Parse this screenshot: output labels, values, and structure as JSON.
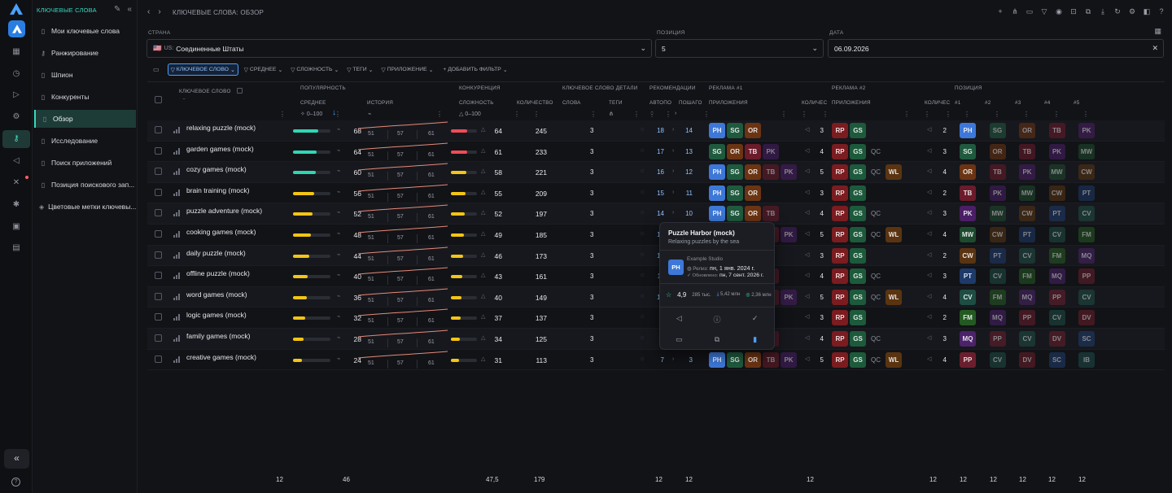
{
  "sidebar": {
    "title": "КЛЮЧЕВЫЕ СЛОВА",
    "items": [
      {
        "label": "Мои ключевые слова",
        "icon": "document-icon"
      },
      {
        "label": "Ранжирование",
        "icon": "key-icon"
      },
      {
        "label": "Шпион",
        "icon": "document-icon"
      },
      {
        "label": "Конкуренты",
        "icon": "document-icon"
      },
      {
        "label": "Обзор",
        "icon": "document-icon",
        "active": true
      },
      {
        "label": "Исследование",
        "icon": "document-icon"
      },
      {
        "label": "Поиск приложений",
        "icon": "document-icon"
      },
      {
        "label": "Позиция поискового зап...",
        "icon": "document-icon"
      },
      {
        "label": "Цветовые метки ключевы...",
        "icon": "tag-icon"
      }
    ]
  },
  "header": {
    "breadcrumb": "КЛЮЧЕВЫЕ СЛОВА: ОБЗОР"
  },
  "filters": {
    "country_label": "СТРАНА",
    "country_flag": "🇺🇸",
    "country_code": "US:",
    "country_value": "Соединенные Штаты",
    "position_label": "ПОЗИЦИЯ",
    "position_value": "5",
    "date_label": "ДАТА",
    "date_value": "06.09.2026"
  },
  "chips": [
    {
      "label": "КЛЮЧЕВОЕ СЛОВО",
      "selected": true
    },
    {
      "label": "СРЕДНЕЕ",
      "selected": false
    },
    {
      "label": "СЛОЖНОСТЬ",
      "selected": false
    },
    {
      "label": "ТЕГИ",
      "selected": false
    },
    {
      "label": "ПРИЛОЖЕНИЕ",
      "selected": false
    },
    {
      "label": "+ ДОБАВИТЬ ФИЛЬТР",
      "selected": false
    }
  ],
  "table": {
    "groups": {
      "keyword": "КЛЮЧЕВОЕ СЛОВО",
      "popularity": "ПОПУЛЯРНОСТЬ",
      "competition": "КОНКУРЕНЦИЯ",
      "details": "КЛЮЧЕВОЕ СЛОВО ДЕТАЛИ",
      "recommendations": "РЕКОМЕНДАЦИИ",
      "ads1": "РЕКЛАМА #1",
      "ads2": "РЕКЛАМА #2",
      "position": "ПОЗИЦИЯ"
    },
    "sub": {
      "average": "СРЕДНЕЕ",
      "history": "ИСТОРИЯ",
      "difficulty": "СЛОЖНОСТЬ",
      "count": "КОЛИЧЕСТВО",
      "words": "СЛОВА",
      "tags": "ТЕГИ",
      "autocomplete": "АВТОПО",
      "stepwise": "ПОШАГО",
      "apps": "ПРИЛОЖЕНИЯ",
      "qty": "КОЛИЧЕС",
      "qty2": "КОЛИЧЕС",
      "pos1": "#1",
      "pos2": "#2",
      "pos3": "#3",
      "pos4": "#4",
      "pos5": "#5",
      "range": "0–100"
    },
    "rows": [
      {
        "keyword": "relaxing puzzle (mock)",
        "avg": 68,
        "avg_pct": 0.68,
        "hist": [
          51,
          57,
          61
        ],
        "diff": 64,
        "diff_pct": 0.64,
        "count": 245,
        "words": 3,
        "rec1": 18,
        "rec2": 14,
        "ads1": [
          "PH",
          "SG",
          "OR"
        ],
        "ads1_count": 3,
        "ads2": [
          "RP",
          "GS"
        ],
        "ads2_count": 2,
        "pos": [
          "PH",
          "SG",
          "OR",
          "TB",
          "PK"
        ]
      },
      {
        "keyword": "garden games (mock)",
        "avg": 64,
        "avg_pct": 0.64,
        "hist": [
          51,
          57,
          61
        ],
        "diff": 61,
        "diff_pct": 0.61,
        "count": 233,
        "words": 3,
        "rec1": 17,
        "rec2": 13,
        "ads1": [
          "SG",
          "OR",
          "TB",
          "PK"
        ],
        "ads1_count": 4,
        "ads2": [
          "RP",
          "GS",
          "QC"
        ],
        "ads2_count": 3,
        "pos": [
          "SG",
          "OR",
          "TB",
          "PK",
          "MW"
        ]
      },
      {
        "keyword": "cozy games (mock)",
        "avg": 60,
        "avg_pct": 0.6,
        "hist": [
          51,
          57,
          61
        ],
        "diff": 58,
        "diff_pct": 0.58,
        "count": 221,
        "words": 3,
        "rec1": 16,
        "rec2": 12,
        "ads1": [
          "PH",
          "SG",
          "OR",
          "TB",
          "PK"
        ],
        "ads1_count": 5,
        "ads2": [
          "RP",
          "GS",
          "QC",
          "WL"
        ],
        "ads2_count": 4,
        "pos": [
          "OR",
          "TB",
          "PK",
          "MW",
          "CW"
        ]
      },
      {
        "keyword": "brain training (mock)",
        "avg": 56,
        "avg_pct": 0.56,
        "hist": [
          51,
          57,
          61
        ],
        "diff": 55,
        "diff_pct": 0.55,
        "count": 209,
        "words": 3,
        "rec1": 15,
        "rec2": 11,
        "ads1": [
          "PH",
          "SG",
          "OR"
        ],
        "ads1_count": 3,
        "ads2": [
          "RP",
          "GS"
        ],
        "ads2_count": 2,
        "pos": [
          "TB",
          "PK",
          "MW",
          "CW",
          "PT"
        ]
      },
      {
        "keyword": "puzzle adventure (mock)",
        "avg": 52,
        "avg_pct": 0.52,
        "hist": [
          51,
          57,
          61
        ],
        "diff": 52,
        "diff_pct": 0.52,
        "count": 197,
        "words": 3,
        "rec1": 14,
        "rec2": 10,
        "ads1": [
          "PH",
          "SG",
          "OR",
          "TB"
        ],
        "ads1_count": 4,
        "ads2": [
          "RP",
          "GS",
          "QC"
        ],
        "ads2_count": 3,
        "pos": [
          "PK",
          "MW",
          "CW",
          "PT",
          "CV"
        ]
      },
      {
        "keyword": "cooking games (mock)",
        "avg": 48,
        "avg_pct": 0.48,
        "hist": [
          51,
          57,
          61
        ],
        "diff": 49,
        "diff_pct": 0.49,
        "count": 185,
        "words": 3,
        "rec1": 13,
        "rec2": 9,
        "ads1": [
          "PH",
          "SG",
          "OR",
          "TB",
          "PK"
        ],
        "ads1_count": 5,
        "ads2": [
          "RP",
          "GS",
          "QC",
          "WL"
        ],
        "ads2_count": 4,
        "pos": [
          "MW",
          "CW",
          "PT",
          "CV",
          "FM"
        ]
      },
      {
        "keyword": "daily puzzle (mock)",
        "avg": 44,
        "avg_pct": 0.44,
        "hist": [
          51,
          57,
          61
        ],
        "diff": 46,
        "diff_pct": 0.46,
        "count": 173,
        "words": 3,
        "rec1": 12,
        "rec2": 8,
        "ads1": [
          "PH",
          "SG",
          "OR"
        ],
        "ads1_count": 3,
        "ads2": [
          "RP",
          "GS"
        ],
        "ads2_count": 2,
        "pos": [
          "CW",
          "PT",
          "CV",
          "FM",
          "MQ"
        ]
      },
      {
        "keyword": "offline puzzle (mock)",
        "avg": 40,
        "avg_pct": 0.4,
        "hist": [
          51,
          57,
          61
        ],
        "diff": 43,
        "diff_pct": 0.43,
        "count": 161,
        "words": 3,
        "rec1": 11,
        "rec2": 7,
        "ads1": [
          "PH",
          "SG",
          "OR",
          "TB"
        ],
        "ads1_count": 4,
        "ads2": [
          "RP",
          "GS",
          "QC"
        ],
        "ads2_count": 3,
        "pos": [
          "PT",
          "CV",
          "FM",
          "MQ",
          "PP"
        ]
      },
      {
        "keyword": "word games (mock)",
        "avg": 36,
        "avg_pct": 0.36,
        "hist": [
          51,
          57,
          61
        ],
        "diff": 40,
        "diff_pct": 0.4,
        "count": 149,
        "words": 3,
        "rec1": 10,
        "rec2": 6,
        "ads1": [
          "PH",
          "SG",
          "OR",
          "TB",
          "PK"
        ],
        "ads1_count": 5,
        "ads2": [
          "RP",
          "GS",
          "QC",
          "WL"
        ],
        "ads2_count": 4,
        "pos": [
          "CV",
          "FM",
          "MQ",
          "PP",
          "CV"
        ]
      },
      {
        "keyword": "logic games (mock)",
        "avg": 32,
        "avg_pct": 0.32,
        "hist": [
          51,
          57,
          61
        ],
        "diff": 37,
        "diff_pct": 0.37,
        "count": 137,
        "words": 3,
        "rec1": 9,
        "rec2": 5,
        "ads1": [
          "PH",
          "SG",
          "OR"
        ],
        "ads1_count": 3,
        "ads2": [
          "RP",
          "GS"
        ],
        "ads2_count": 2,
        "pos": [
          "FM",
          "MQ",
          "PP",
          "CV",
          "DV"
        ]
      },
      {
        "keyword": "family games (mock)",
        "avg": 28,
        "avg_pct": 0.28,
        "hist": [
          51,
          57,
          61
        ],
        "diff": 34,
        "diff_pct": 0.34,
        "count": 125,
        "words": 3,
        "rec1": 8,
        "rec2": 4,
        "ads1": [
          "PH",
          "SG",
          "OR",
          "TB"
        ],
        "ads1_count": 4,
        "ads2": [
          "RP",
          "GS",
          "QC"
        ],
        "ads2_count": 3,
        "pos": [
          "MQ",
          "PP",
          "CV",
          "DV",
          "SC"
        ]
      },
      {
        "keyword": "creative games (mock)",
        "avg": 24,
        "avg_pct": 0.24,
        "hist": [
          51,
          57,
          61
        ],
        "diff": 31,
        "diff_pct": 0.31,
        "count": 113,
        "words": 3,
        "rec1": 7,
        "rec2": 3,
        "ads1": [
          "PH",
          "SG",
          "OR",
          "TB",
          "PK"
        ],
        "ads1_count": 5,
        "ads2": [
          "RP",
          "GS",
          "QC",
          "WL"
        ],
        "ads2_count": 4,
        "pos": [
          "PP",
          "CV",
          "DV",
          "SC",
          "IB"
        ]
      }
    ],
    "totals": {
      "avg_count": "12",
      "avg_sum": "46",
      "diff_avg": "47,5",
      "count_sum": "179",
      "rec1": "12",
      "rec2": "12",
      "ads1": "12",
      "pos0": "12",
      "pos1": "12",
      "pos2": "12",
      "pos3": "12",
      "pos4": "12",
      "pos5": "12"
    }
  },
  "popup": {
    "title": "Puzzle Harbor (mock)",
    "subtitle": "Relaxing puzzles by the sea",
    "avatar": "PH",
    "developer": "Example Studio",
    "release_label": "Релиз:",
    "release_value": "пн, 1 янв. 2024 г.",
    "updated_label": "✓ Обновлено:",
    "updated_value": "пн, 7 сент. 2026 г.",
    "rating": "4,9",
    "reviews": "285 тыс.",
    "stat1": "5,42 млн",
    "stat2": "2,36 млн"
  },
  "colors": {
    "accent": "#38d9bd",
    "blue": "#4aa0ff",
    "bar_green": "#2fd6b4",
    "bar_yellow": "#f3c514",
    "bar_red": "#f04b55"
  },
  "tile_colors": {
    "PH": "#3d78d8",
    "SG": "#1f5a3e",
    "OR": "#6b3413",
    "TB": "#6b1b2a",
    "PK": "#4a1f66",
    "RP": "#7a1c20",
    "GS": "#1c5a3b",
    "QC": "#24262b",
    "WL": "#5a3411",
    "MW": "#1d4a2e",
    "CW": "#5a3412",
    "PT": "#1d3a6a",
    "CV": "#1d4d44",
    "FM": "#245a22",
    "MQ": "#4a2369",
    "PP": "#6a1f2e",
    "DV": "#6a1e2a",
    "SC": "#1f3e6e",
    "IB": "#1d4a4a"
  }
}
